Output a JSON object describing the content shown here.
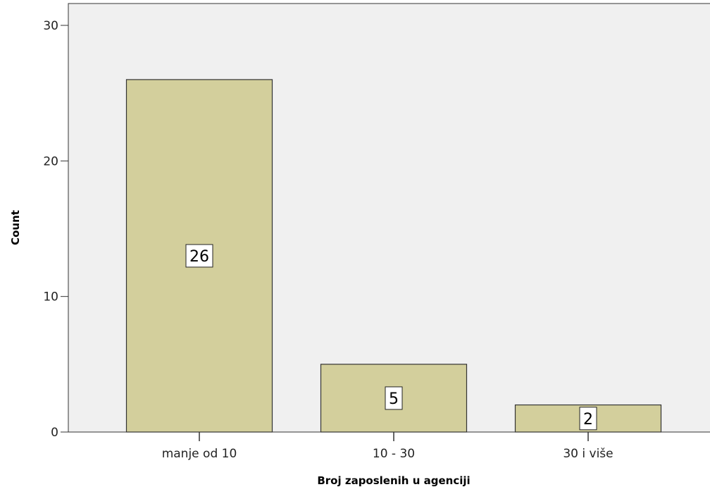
{
  "chart_data": {
    "type": "bar",
    "title": "",
    "xlabel": "Broj zaposlenih u agenciji",
    "ylabel": "Count",
    "categories": [
      "manje od 10",
      "10 - 30",
      "30 i više"
    ],
    "values": [
      26,
      5,
      2
    ],
    "data_labels": [
      "26",
      "5",
      "2"
    ],
    "ylim": [
      0,
      30
    ],
    "yticks": [
      "0",
      "10",
      "20",
      "30"
    ],
    "grid": false,
    "legend": "none",
    "colors": {
      "plot_background": "#f0f0f0",
      "bar_fill": "#d3cf9c",
      "bar_stroke": "#333333",
      "label_box": "#ffffff"
    }
  }
}
